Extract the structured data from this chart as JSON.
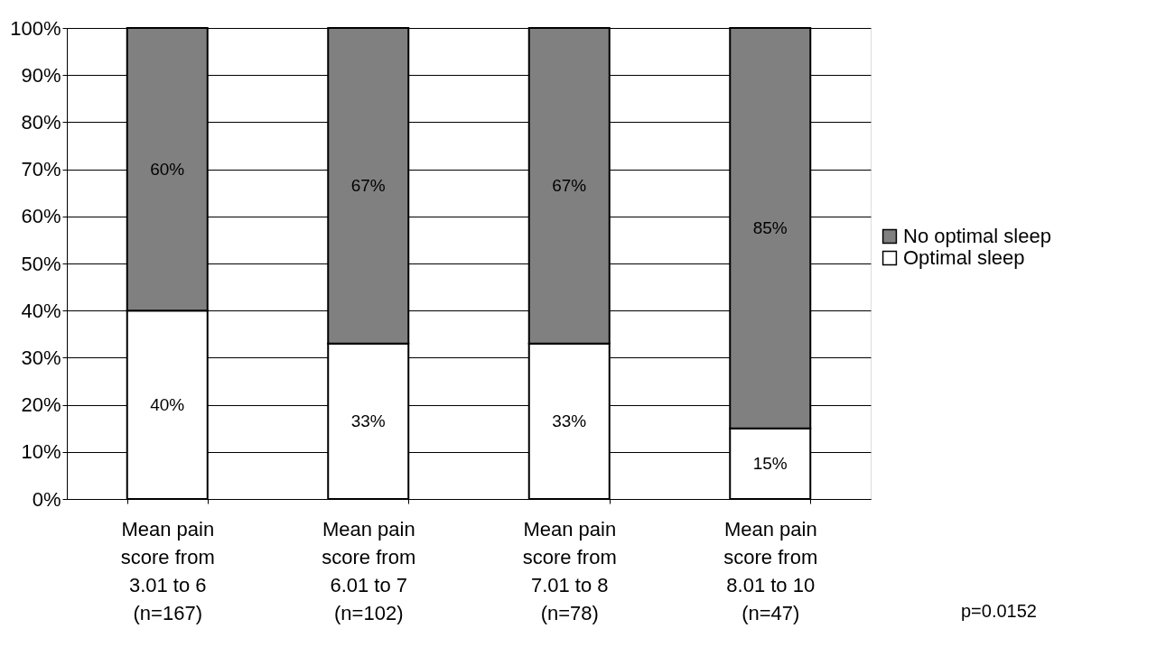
{
  "chart_data": {
    "type": "bar",
    "stacked": true,
    "categories": [
      "Mean pain\nscore from\n3.01 to 6\n(n=167)",
      "Mean pain\nscore from\n6.01 to 7\n(n=102)",
      "Mean pain\nscore from\n7.01 to 8\n(n=78)",
      "Mean pain\nscore from\n8.01 to 10\n(n=47)"
    ],
    "series": [
      {
        "name": "Optimal sleep",
        "color": "#ffffff",
        "values": [
          40,
          33,
          33,
          15
        ],
        "value_labels": [
          "40%",
          "33%",
          "33%",
          "15%"
        ]
      },
      {
        "name": "No optimal sleep",
        "color": "#808080",
        "values": [
          60,
          67,
          67,
          85
        ],
        "value_labels": [
          "60%",
          "67%",
          "67%",
          "85%"
        ]
      }
    ],
    "ylim": [
      0,
      100
    ],
    "yticks": [
      {
        "value": 0,
        "label": "0%"
      },
      {
        "value": 10,
        "label": "10%"
      },
      {
        "value": 20,
        "label": "20%"
      },
      {
        "value": 30,
        "label": "30%"
      },
      {
        "value": 40,
        "label": "40%"
      },
      {
        "value": 50,
        "label": "50%"
      },
      {
        "value": 60,
        "label": "60%"
      },
      {
        "value": 70,
        "label": "70%"
      },
      {
        "value": 80,
        "label": "80%"
      },
      {
        "value": 90,
        "label": "90%"
      },
      {
        "value": 100,
        "label": "100%"
      }
    ],
    "grid": "y",
    "legend": "right",
    "annotations": [
      "p=0.0152"
    ]
  }
}
